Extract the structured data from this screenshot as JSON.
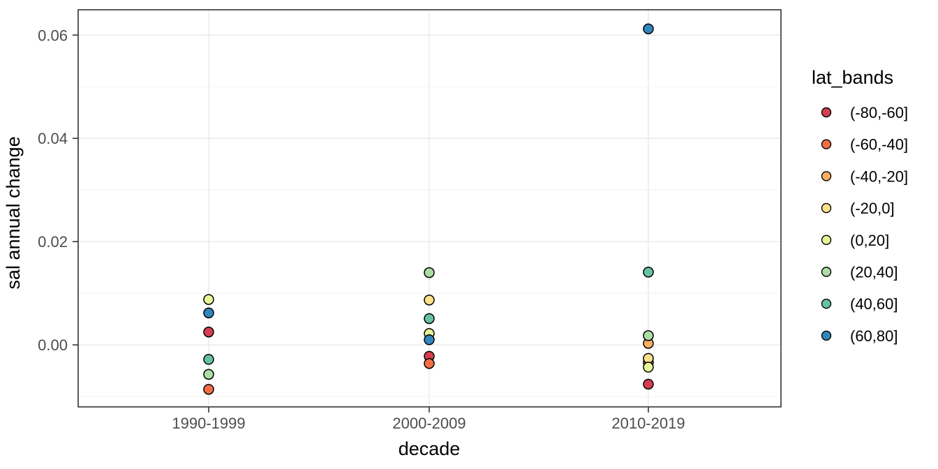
{
  "chart_data": {
    "type": "scatter",
    "title": "",
    "xlabel": "decade",
    "ylabel": "sal annual change",
    "categories": [
      "1990-1999",
      "2000-2009",
      "2010-2019"
    ],
    "y_major_ticks": [
      0.0,
      0.02,
      0.04,
      0.06
    ],
    "y_major_tick_labels": [
      "0.00",
      "0.02",
      "0.04",
      "0.06"
    ],
    "y_minor_ticks": [
      -0.01,
      0.01,
      0.03,
      0.05
    ],
    "ylim": [
      -0.012,
      0.0649
    ],
    "grid": true,
    "legend_position": "right",
    "legend_title": "lat_bands",
    "series": [
      {
        "name": "(-80,-60]",
        "color": "#d53e4f",
        "values": [
          0.0025,
          -0.0022,
          -0.0076
        ]
      },
      {
        "name": "(-60,-40]",
        "color": "#f46d43",
        "values": [
          -0.0086,
          -0.0036,
          -0.0034
        ]
      },
      {
        "name": "(-40,-20]",
        "color": "#fdae61",
        "values": [
          null,
          null,
          0.0003
        ]
      },
      {
        "name": "(-20,0]",
        "color": "#fee08b",
        "values": [
          null,
          0.0087,
          -0.0026
        ]
      },
      {
        "name": "(0,20]",
        "color": "#e6f598",
        "values": [
          0.0088,
          0.0022,
          -0.0043
        ]
      },
      {
        "name": "(20,40]",
        "color": "#abdda4",
        "values": [
          -0.0057,
          0.014,
          0.0018
        ]
      },
      {
        "name": "(40,60]",
        "color": "#66c2a5",
        "values": [
          -0.0028,
          0.0051,
          0.0141
        ]
      },
      {
        "name": "(60,80]",
        "color": "#3288bd",
        "values": [
          0.0062,
          0.001,
          0.0612
        ]
      }
    ],
    "style": {
      "panel_border_color": "#333333",
      "major_grid_color": "#e9e9e9",
      "minor_grid_color": "#f3f3f3",
      "tick_color": "#333333",
      "point_stroke_color": "#000000",
      "tick_label_color": "#4d4d4d"
    }
  }
}
